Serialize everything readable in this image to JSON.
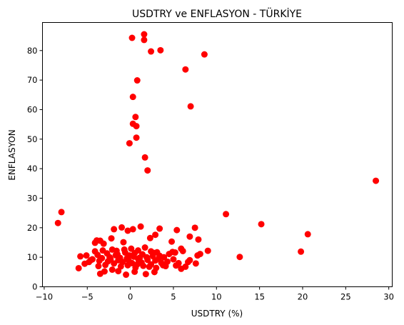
{
  "chart_data": {
    "type": "scatter",
    "title": "USDTRY ve ENFLASYON - TÜRKİYE",
    "xlabel": "USDTRY (%)",
    "ylabel": "ENFLASYON",
    "xlim": [
      -10.2,
      30.4
    ],
    "ylim": [
      0,
      89.5
    ],
    "xticks": [
      -10,
      -5,
      0,
      5,
      10,
      15,
      20,
      25,
      30
    ],
    "yticks": [
      0,
      10,
      20,
      30,
      40,
      50,
      60,
      70,
      80
    ],
    "grid": false,
    "marker_color": "#ff0000",
    "points": [
      [
        0.2,
        84.3
      ],
      [
        1.6,
        85.5
      ],
      [
        1.6,
        83.6
      ],
      [
        2.4,
        79.7
      ],
      [
        3.5,
        80.1
      ],
      [
        8.6,
        78.7
      ],
      [
        6.4,
        73.6
      ],
      [
        0.8,
        69.9
      ],
      [
        0.3,
        64.3
      ],
      [
        7.0,
        61.1
      ],
      [
        0.6,
        57.5
      ],
      [
        0.3,
        55.2
      ],
      [
        0.7,
        54.4
      ],
      [
        0.7,
        50.5
      ],
      [
        -0.1,
        48.6
      ],
      [
        1.7,
        43.8
      ],
      [
        2.0,
        39.4
      ],
      [
        28.5,
        35.9
      ],
      [
        -8.0,
        25.3
      ],
      [
        -8.4,
        21.6
      ],
      [
        11.1,
        24.6
      ],
      [
        15.2,
        21.2
      ],
      [
        20.6,
        17.8
      ],
      [
        19.8,
        11.9
      ],
      [
        12.7,
        10.1
      ],
      [
        9.0,
        12.2
      ],
      [
        7.5,
        20.0
      ],
      [
        7.9,
        16.0
      ],
      [
        6.9,
        17.0
      ],
      [
        5.4,
        19.2
      ],
      [
        3.4,
        19.7
      ],
      [
        1.2,
        20.4
      ],
      [
        -0.3,
        19.0
      ],
      [
        0.3,
        19.5
      ],
      [
        -1.0,
        20.1
      ],
      [
        -1.9,
        19.5
      ],
      [
        -2.2,
        16.4
      ],
      [
        -0.8,
        15.1
      ],
      [
        2.3,
        16.5
      ],
      [
        2.9,
        17.6
      ],
      [
        4.8,
        15.3
      ],
      [
        5.9,
        12.9
      ],
      [
        -3.9,
        15.7
      ],
      [
        -4.1,
        14.9
      ],
      [
        -3.5,
        15.6
      ],
      [
        -3.1,
        14.6
      ],
      [
        -5.8,
        10.3
      ],
      [
        -5.1,
        10.6
      ],
      [
        -4.6,
        9.0
      ],
      [
        -5.3,
        7.8
      ],
      [
        -6.0,
        6.3
      ],
      [
        -3.5,
        4.4
      ],
      [
        -3.0,
        5.2
      ],
      [
        -2.1,
        5.8
      ],
      [
        -1.4,
        5.3
      ],
      [
        -0.5,
        4.1
      ],
      [
        0.5,
        5.1
      ],
      [
        1.8,
        4.3
      ],
      [
        2.8,
        5.0
      ],
      [
        3.0,
        6.4
      ],
      [
        4.1,
        7.0
      ],
      [
        5.3,
        7.2
      ],
      [
        5.9,
        6.1
      ],
      [
        6.4,
        6.8
      ],
      [
        7.6,
        7.9
      ],
      [
        6.9,
        9.0
      ],
      [
        7.8,
        10.6
      ],
      [
        8.1,
        11.1
      ],
      [
        6.1,
        12.1
      ],
      [
        5.2,
        11.6
      ],
      [
        4.5,
        11.1
      ],
      [
        3.9,
        10.0
      ],
      [
        3.3,
        9.6
      ],
      [
        2.6,
        10.4
      ],
      [
        2.0,
        9.1
      ],
      [
        1.4,
        11.0
      ],
      [
        0.9,
        9.5
      ],
      [
        0.4,
        10.2
      ],
      [
        -0.2,
        8.9
      ],
      [
        -0.6,
        11.6
      ],
      [
        -1.2,
        9.8
      ],
      [
        -1.7,
        10.7
      ],
      [
        -2.3,
        9.4
      ],
      [
        -2.7,
        11.3
      ],
      [
        -3.3,
        9.7
      ],
      [
        -3.8,
        10.8
      ],
      [
        -4.4,
        9.3
      ],
      [
        -2.9,
        7.4
      ],
      [
        -1.9,
        7.9
      ],
      [
        -1.1,
        6.9
      ],
      [
        -0.3,
        7.3
      ],
      [
        0.6,
        6.5
      ],
      [
        1.5,
        7.1
      ],
      [
        2.4,
        7.6
      ],
      [
        3.6,
        8.1
      ],
      [
        4.3,
        8.5
      ],
      [
        5.0,
        9.3
      ],
      [
        -1.6,
        12.2
      ],
      [
        -0.7,
        12.6
      ],
      [
        0.1,
        12.9
      ],
      [
        0.9,
        12.3
      ],
      [
        1.7,
        13.3
      ],
      [
        2.4,
        12.0
      ],
      [
        3.1,
        11.7
      ],
      [
        -2.1,
        12.6
      ],
      [
        -3.2,
        12.3
      ],
      [
        -4.1,
        12.0
      ],
      [
        1.0,
        8.5
      ],
      [
        0.2,
        8.0
      ],
      [
        -0.9,
        8.4
      ],
      [
        -2.6,
        8.6
      ],
      [
        2.9,
        8.9
      ],
      [
        3.8,
        7.3
      ],
      [
        -3.7,
        7.0
      ],
      [
        -4.8,
        8.4
      ],
      [
        6.7,
        8.4
      ],
      [
        1.9,
        10.0
      ],
      [
        -0.1,
        10.6
      ],
      [
        1.3,
        8.2
      ],
      [
        -1.4,
        9.0
      ],
      [
        0.5,
        11.4
      ],
      [
        2.2,
        6.8
      ],
      [
        -2.4,
        10.0
      ],
      [
        1.1,
        9.9
      ],
      [
        3.4,
        10.5
      ],
      [
        -0.4,
        9.6
      ],
      [
        -1.5,
        11.0
      ],
      [
        4.9,
        11.8
      ],
      [
        5.6,
        8.0
      ],
      [
        -3.6,
        8.8
      ],
      [
        0.8,
        7.6
      ],
      [
        2.7,
        11.5
      ]
    ]
  }
}
